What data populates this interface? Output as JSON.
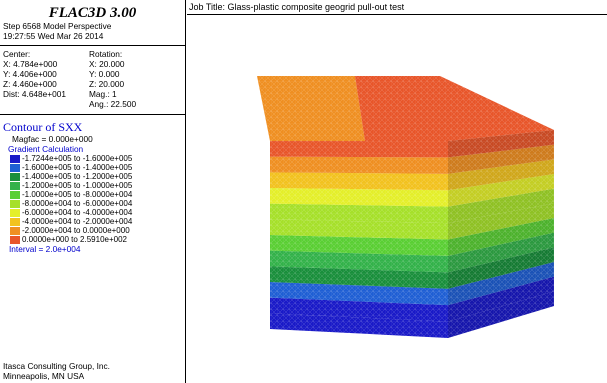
{
  "product": "FLAC3D 3.00",
  "step_line": "Step 6568  Model Perspective",
  "time_line": "19:27:55 Wed Mar 26 2014",
  "view": {
    "center_label": "Center:",
    "center_x": "X: 4.784e+000",
    "center_y": "Y: 4.406e+000",
    "center_z": "Z: 4.460e+000",
    "dist": "Dist: 4.648e+001",
    "rotation_label": "Rotation:",
    "rot_x": "X:  20.000",
    "rot_y": "Y:   0.000",
    "rot_z": "Z:  20.000",
    "mag": "Mag.:       1",
    "ang": "Ang.:  22.500"
  },
  "contour": {
    "title": "Contour of SXX",
    "magfac": "Magfac =  0.000e+000",
    "calc": "Gradient Calculation",
    "legend": [
      {
        "label": "-1.7244e+005 to -1.6000e+005",
        "color": "#1a1ac8"
      },
      {
        "label": "-1.6000e+005 to -1.4000e+005",
        "color": "#1f5fd4"
      },
      {
        "label": "-1.4000e+005 to -1.2000e+005",
        "color": "#1a8f3c"
      },
      {
        "label": "-1.2000e+005 to -1.0000e+005",
        "color": "#33b24a"
      },
      {
        "label": "-1.0000e+005 to -8.0000e+004",
        "color": "#5acf34"
      },
      {
        "label": "-8.0000e+004 to -6.0000e+004",
        "color": "#a6e02a"
      },
      {
        "label": "-6.0000e+004 to -4.0000e+004",
        "color": "#e4ef2a"
      },
      {
        "label": "-4.0000e+004 to -2.0000e+004",
        "color": "#f2c21f"
      },
      {
        "label": "-2.0000e+004 to  0.0000e+000",
        "color": "#ef8f22"
      },
      {
        "label": " 0.0000e+000 to  2.5910e+002",
        "color": "#e8562a"
      }
    ],
    "interval": "Interval =  2.0e+004"
  },
  "footer": {
    "line1": "Itasca Consulting Group, Inc.",
    "line2": "Minneapolis, MN  USA"
  },
  "job_title": "Job Title: Glass-plastic composite geogrid pull-out test"
}
